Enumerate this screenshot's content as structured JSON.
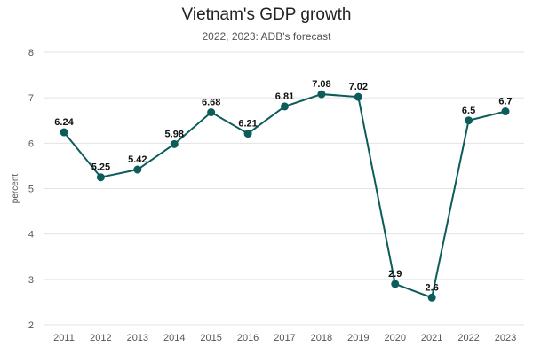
{
  "chart_data": {
    "type": "line",
    "title": "Vietnam's GDP growth",
    "subtitle": "2022, 2023: ADB's forecast",
    "ylabel": "percent",
    "xlabel": "",
    "ylim": [
      2,
      8
    ],
    "yticks": [
      2,
      3,
      4,
      5,
      6,
      7,
      8
    ],
    "grid": true,
    "legend": "none",
    "categories": [
      "2011",
      "2012",
      "2013",
      "2014",
      "2015",
      "2016",
      "2017",
      "2018",
      "2019",
      "2020",
      "2021",
      "2022",
      "2023"
    ],
    "series": [
      {
        "color": "#0d5c5c",
        "values": [
          6.24,
          5.25,
          5.42,
          5.98,
          6.68,
          6.21,
          6.81,
          7.08,
          7.02,
          2.9,
          2.6,
          6.5,
          6.7
        ],
        "labels": [
          "6.24",
          "5.25",
          "5.42",
          "5.98",
          "6.68",
          "6.21",
          "6.81",
          "7.08",
          "7.02",
          "2.9",
          "2.6",
          "6.5",
          "6.7"
        ]
      }
    ]
  }
}
